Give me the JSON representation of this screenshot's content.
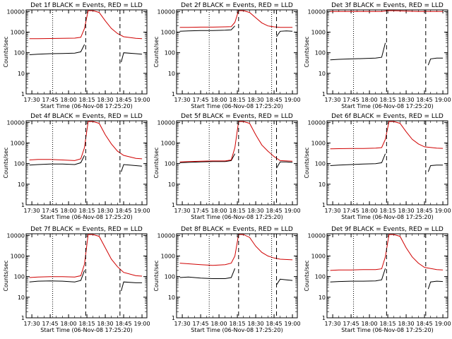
{
  "chart_data": [
    {
      "type": "line",
      "title": "Det 1f BLACK = Events, RED = LLD",
      "xlabel": "Start Time (06-Nov-08 17:25:20)",
      "ylabel": "Counts/sec",
      "x_ticks": [
        "17:30",
        "17:45",
        "18:00",
        "18:15",
        "18:30",
        "18:45",
        "19:00"
      ],
      "y_ticks": [
        "1",
        "10",
        "100",
        "1000",
        "10000"
      ],
      "y_scale": "log",
      "series": [
        {
          "color": "#000000",
          "x": [
            "17:28",
            "17:35",
            "17:45",
            "17:55",
            "18:05",
            "18:10",
            "18:13",
            "18:14",
            "18:42",
            "18:43",
            "18:45",
            "18:55",
            "19:00"
          ],
          "y": [
            80,
            85,
            90,
            92,
            95,
            110,
            250,
            0,
            0,
            35,
            100,
            90,
            85
          ]
        },
        {
          "color": "#d00000",
          "x": [
            "17:28",
            "17:35",
            "17:45",
            "17:55",
            "18:05",
            "18:10",
            "18:13",
            "18:16",
            "18:20",
            "18:25",
            "18:30",
            "18:35",
            "18:40",
            "18:45",
            "18:55",
            "19:00"
          ],
          "y": [
            480,
            480,
            490,
            500,
            510,
            560,
            1500,
            11000,
            11000,
            9000,
            3500,
            1500,
            850,
            600,
            500,
            480
          ]
        }
      ],
      "markers": [
        {
          "time": "17:47",
          "style": "dotted"
        },
        {
          "time": "18:14",
          "style": "dashed"
        },
        {
          "time": "18:42",
          "style": "dashed"
        }
      ]
    },
    {
      "type": "line",
      "title": "Det 2f BLACK = Events, RED = LLD",
      "xlabel": "Start Time (06-Nov-08 17:25:20)",
      "ylabel": "Counts/sec",
      "x_ticks": [
        "17:30",
        "17:45",
        "18:00",
        "18:15",
        "18:30",
        "18:45",
        "19:00"
      ],
      "y_ticks": [
        "1",
        "10",
        "100",
        "1000",
        "10000"
      ],
      "y_scale": "log",
      "series": [
        {
          "color": "#000000",
          "x": [
            "17:28",
            "17:35",
            "17:45",
            "17:55",
            "18:05",
            "18:10",
            "18:13",
            "18:16",
            "18:46",
            "18:47",
            "18:50",
            "18:55",
            "19:00"
          ],
          "y": [
            1100,
            1150,
            1200,
            1200,
            1250,
            1300,
            2000,
            0,
            0,
            600,
            1100,
            1150,
            1100
          ]
        },
        {
          "color": "#d00000",
          "x": [
            "17:28",
            "17:35",
            "17:45",
            "17:55",
            "18:05",
            "18:10",
            "18:13",
            "18:16",
            "18:20",
            "18:25",
            "18:30",
            "18:35",
            "18:40",
            "18:45",
            "18:50",
            "19:00"
          ],
          "y": [
            1700,
            1700,
            1750,
            1750,
            1800,
            1850,
            3000,
            11000,
            11000,
            9000,
            5000,
            2800,
            2000,
            1800,
            1700,
            1700
          ]
        }
      ],
      "markers": [
        {
          "time": "17:52",
          "style": "dotted"
        },
        {
          "time": "18:16",
          "style": "dashed"
        },
        {
          "time": "18:43",
          "style": "dotted"
        },
        {
          "time": "18:47",
          "style": "dashed"
        }
      ]
    },
    {
      "type": "line",
      "title": "Det 3f BLACK = Events, RED = LLD",
      "xlabel": "Start Time (06-Nov-08 17:25:20)",
      "ylabel": "Counts/sec",
      "x_ticks": [
        "17:30",
        "17:45",
        "18:00",
        "18:15",
        "18:30",
        "18:45",
        "19:00"
      ],
      "y_ticks": [
        "1",
        "10",
        "100",
        "1000",
        "10000"
      ],
      "y_scale": "log",
      "series": [
        {
          "color": "#000000",
          "x": [
            "17:28",
            "17:35",
            "17:45",
            "17:55",
            "18:05",
            "18:10",
            "18:13",
            "18:14",
            "18:47",
            "18:48",
            "18:50",
            "18:55",
            "19:00"
          ],
          "y": [
            45,
            48,
            50,
            52,
            55,
            60,
            300,
            0,
            0,
            25,
            50,
            55,
            55
          ]
        },
        {
          "color": "#d00000",
          "x": [
            "17:28",
            "17:35",
            "17:45",
            "17:55",
            "18:05",
            "18:10",
            "18:15",
            "18:20",
            "18:30",
            "18:40",
            "18:50",
            "19:00"
          ],
          "y": [
            10000,
            10000,
            10000,
            10000,
            10000,
            10000,
            11000,
            11000,
            10500,
            10000,
            10000,
            10000
          ]
        }
      ],
      "markers": [
        {
          "time": "17:47",
          "style": "dotted"
        },
        {
          "time": "18:14",
          "style": "dashed"
        },
        {
          "time": "18:46",
          "style": "dashed"
        }
      ]
    },
    {
      "type": "line",
      "title": "Det 4f BLACK = Events, RED = LLD",
      "xlabel": "Start Time (06-Nov-08 17:25:20)",
      "ylabel": "Counts/sec",
      "x_ticks": [
        "17:30",
        "17:45",
        "18:00",
        "18:15",
        "18:30",
        "18:45",
        "19:00"
      ],
      "y_ticks": [
        "1",
        "10",
        "100",
        "1000",
        "10000"
      ],
      "y_scale": "log",
      "series": [
        {
          "color": "#000000",
          "x": [
            "17:28",
            "17:35",
            "17:45",
            "17:55",
            "18:05",
            "18:10",
            "18:13",
            "18:14",
            "18:42",
            "18:43",
            "18:45",
            "18:55",
            "19:00"
          ],
          "y": [
            85,
            90,
            95,
            95,
            90,
            110,
            250,
            0,
            0,
            40,
            90,
            80,
            75
          ]
        },
        {
          "color": "#d00000",
          "x": [
            "17:28",
            "17:35",
            "17:45",
            "17:55",
            "18:05",
            "18:10",
            "18:13",
            "18:16",
            "18:20",
            "18:25",
            "18:30",
            "18:35",
            "18:40",
            "18:45",
            "18:55",
            "19:00"
          ],
          "y": [
            150,
            160,
            160,
            150,
            140,
            170,
            600,
            11000,
            11000,
            9000,
            2500,
            900,
            400,
            250,
            180,
            170
          ]
        }
      ],
      "markers": [
        {
          "time": "17:47",
          "style": "dotted"
        },
        {
          "time": "18:14",
          "style": "dashed"
        },
        {
          "time": "18:42",
          "style": "dashed"
        }
      ]
    },
    {
      "type": "line",
      "title": "Det 5f BLACK = Events, RED = LLD",
      "xlabel": "Start Time (06-Nov-08 17:25:20)",
      "ylabel": "Counts/sec",
      "x_ticks": [
        "17:30",
        "17:45",
        "18:00",
        "18:15",
        "18:30",
        "18:45",
        "19:00"
      ],
      "y_ticks": [
        "1",
        "10",
        "100",
        "1000",
        "10000"
      ],
      "y_scale": "log",
      "series": [
        {
          "color": "#000000",
          "x": [
            "17:28",
            "17:35",
            "17:45",
            "17:55",
            "18:05",
            "18:10",
            "18:13",
            "18:16",
            "18:46",
            "18:47",
            "18:50",
            "18:55",
            "19:00"
          ],
          "y": [
            110,
            115,
            120,
            125,
            125,
            140,
            300,
            0,
            0,
            60,
            120,
            120,
            115
          ]
        },
        {
          "color": "#d00000",
          "x": [
            "17:28",
            "17:35",
            "17:45",
            "17:55",
            "18:05",
            "18:10",
            "18:13",
            "18:16",
            "18:20",
            "18:25",
            "18:30",
            "18:35",
            "18:40",
            "18:45",
            "18:50",
            "19:00"
          ],
          "y": [
            120,
            125,
            130,
            135,
            135,
            150,
            600,
            11000,
            11000,
            9000,
            2500,
            800,
            400,
            220,
            140,
            130
          ]
        }
      ],
      "markers": [
        {
          "time": "17:52",
          "style": "dotted"
        },
        {
          "time": "18:16",
          "style": "dashed"
        },
        {
          "time": "18:43",
          "style": "dotted"
        },
        {
          "time": "18:47",
          "style": "dashed"
        }
      ]
    },
    {
      "type": "line",
      "title": "Det 6f BLACK = Events, RED = LLD",
      "xlabel": "Start Time (06-Nov-08 17:25:20)",
      "ylabel": "Counts/sec",
      "x_ticks": [
        "17:30",
        "17:45",
        "18:00",
        "18:15",
        "18:30",
        "18:45",
        "19:00"
      ],
      "y_ticks": [
        "1",
        "10",
        "100",
        "1000",
        "10000"
      ],
      "y_scale": "log",
      "series": [
        {
          "color": "#000000",
          "x": [
            "17:28",
            "17:35",
            "17:45",
            "17:55",
            "18:05",
            "18:10",
            "18:13",
            "18:14",
            "18:47",
            "18:48",
            "18:50",
            "18:55",
            "19:00"
          ],
          "y": [
            80,
            85,
            90,
            95,
            100,
            110,
            300,
            0,
            0,
            40,
            80,
            85,
            85
          ]
        },
        {
          "color": "#d00000",
          "x": [
            "17:28",
            "17:35",
            "17:45",
            "17:55",
            "18:05",
            "18:10",
            "18:13",
            "18:16",
            "18:20",
            "18:25",
            "18:30",
            "18:35",
            "18:40",
            "18:45",
            "18:55",
            "19:00"
          ],
          "y": [
            520,
            530,
            540,
            540,
            560,
            600,
            1500,
            11000,
            11000,
            9000,
            3500,
            1500,
            900,
            650,
            560,
            550
          ]
        }
      ],
      "markers": [
        {
          "time": "17:47",
          "style": "dotted"
        },
        {
          "time": "18:14",
          "style": "dashed"
        },
        {
          "time": "18:46",
          "style": "dashed"
        }
      ]
    },
    {
      "type": "line",
      "title": "Det 7f BLACK = Events, RED = LLD",
      "xlabel": "Start Time (06-Nov-08 17:25:20)",
      "ylabel": "Counts/sec",
      "x_ticks": [
        "17:30",
        "17:45",
        "18:00",
        "18:15",
        "18:30",
        "18:45",
        "19:00"
      ],
      "y_ticks": [
        "1",
        "10",
        "100",
        "1000",
        "10000"
      ],
      "y_scale": "log",
      "series": [
        {
          "color": "#000000",
          "x": [
            "17:28",
            "17:35",
            "17:45",
            "17:55",
            "18:05",
            "18:10",
            "18:13",
            "18:14",
            "18:42",
            "18:43",
            "18:45",
            "18:55",
            "19:00"
          ],
          "y": [
            55,
            60,
            62,
            60,
            55,
            65,
            200,
            0,
            0,
            20,
            55,
            50,
            50
          ]
        },
        {
          "color": "#d00000",
          "x": [
            "17:28",
            "17:35",
            "17:45",
            "17:55",
            "18:05",
            "18:10",
            "18:13",
            "18:16",
            "18:20",
            "18:25",
            "18:30",
            "18:35",
            "18:40",
            "18:45",
            "18:55",
            "19:00"
          ],
          "y": [
            90,
            95,
            100,
            100,
            95,
            110,
            400,
            11000,
            11000,
            9000,
            2500,
            700,
            300,
            160,
            110,
            105
          ]
        }
      ],
      "markers": [
        {
          "time": "17:47",
          "style": "dotted"
        },
        {
          "time": "18:14",
          "style": "dashed"
        },
        {
          "time": "18:42",
          "style": "dashed"
        }
      ]
    },
    {
      "type": "line",
      "title": "Det 8f BLACK = Events, RED = LLD",
      "xlabel": "Start Time (06-Nov-08 17:25:20)",
      "ylabel": "Counts/sec",
      "x_ticks": [
        "17:30",
        "17:45",
        "18:00",
        "18:15",
        "18:30",
        "18:45",
        "19:00"
      ],
      "y_ticks": [
        "1",
        "10",
        "100",
        "1000",
        "10000"
      ],
      "y_scale": "log",
      "series": [
        {
          "color": "#000000",
          "x": [
            "17:28",
            "17:35",
            "17:45",
            "17:55",
            "18:05",
            "18:10",
            "18:13",
            "18:16",
            "18:46",
            "18:47",
            "18:50",
            "18:55",
            "19:00"
          ],
          "y": [
            90,
            95,
            85,
            80,
            80,
            90,
            250,
            0,
            0,
            40,
            75,
            70,
            65
          ]
        },
        {
          "color": "#d00000",
          "x": [
            "17:28",
            "17:35",
            "17:45",
            "17:55",
            "18:05",
            "18:10",
            "18:13",
            "18:16",
            "18:20",
            "18:25",
            "18:30",
            "18:35",
            "18:40",
            "18:45",
            "18:50",
            "19:00"
          ],
          "y": [
            450,
            420,
            380,
            350,
            380,
            450,
            1000,
            11000,
            11000,
            8000,
            3000,
            1500,
            1000,
            800,
            700,
            650
          ]
        }
      ],
      "markers": [
        {
          "time": "17:52",
          "style": "dotted"
        },
        {
          "time": "18:16",
          "style": "dashed"
        },
        {
          "time": "18:43",
          "style": "dotted"
        },
        {
          "time": "18:47",
          "style": "dashed"
        }
      ]
    },
    {
      "type": "line",
      "title": "Det 9f BLACK = Events, RED = LLD",
      "xlabel": "Start Time (06-Nov-08 17:25:20)",
      "ylabel": "Counts/sec",
      "x_ticks": [
        "17:30",
        "17:45",
        "18:00",
        "18:15",
        "18:30",
        "18:45",
        "19:00"
      ],
      "y_ticks": [
        "1",
        "10",
        "100",
        "1000",
        "10000"
      ],
      "y_scale": "log",
      "series": [
        {
          "color": "#000000",
          "x": [
            "17:28",
            "17:35",
            "17:45",
            "17:55",
            "18:05",
            "18:10",
            "18:13",
            "18:14",
            "18:47",
            "18:48",
            "18:50",
            "18:55",
            "19:00"
          ],
          "y": [
            55,
            58,
            60,
            60,
            62,
            70,
            250,
            0,
            0,
            25,
            55,
            60,
            58
          ]
        },
        {
          "color": "#d00000",
          "x": [
            "17:28",
            "17:35",
            "17:45",
            "17:55",
            "18:05",
            "18:10",
            "18:13",
            "18:16",
            "18:20",
            "18:25",
            "18:30",
            "18:35",
            "18:40",
            "18:45",
            "18:55",
            "19:00"
          ],
          "y": [
            200,
            210,
            210,
            220,
            220,
            240,
            900,
            11000,
            11000,
            9000,
            2500,
            900,
            450,
            280,
            220,
            210
          ]
        }
      ],
      "markers": [
        {
          "time": "17:47",
          "style": "dotted"
        },
        {
          "time": "18:14",
          "style": "dashed"
        },
        {
          "time": "18:46",
          "style": "dashed"
        }
      ]
    }
  ]
}
